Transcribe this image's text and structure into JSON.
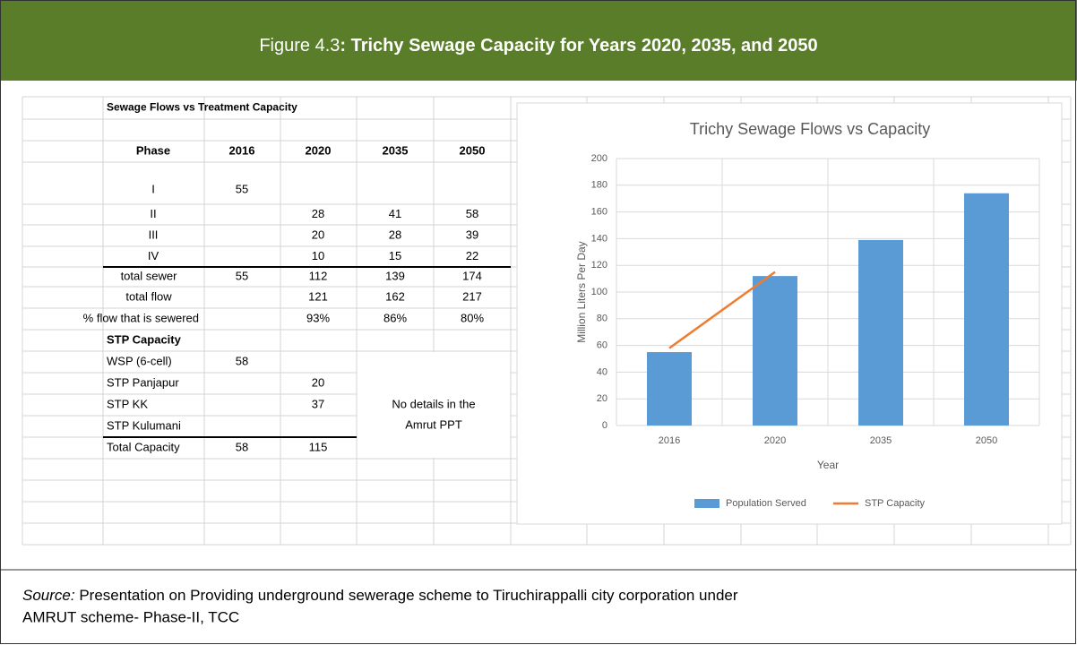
{
  "header": {
    "figure_label": "Figure 4.3",
    "title": ": Trichy Sewage Capacity for Years 2020, 2035, and 2050"
  },
  "table": {
    "title": "Sewage Flows vs Treatment Capacity",
    "columns": [
      "Phase",
      "2016",
      "2020",
      "2035",
      "2050"
    ],
    "rows": [
      {
        "label": "I",
        "values": [
          55,
          null,
          null,
          null
        ]
      },
      {
        "label": "II",
        "values": [
          null,
          28,
          41,
          58
        ]
      },
      {
        "label": "III",
        "values": [
          null,
          20,
          28,
          39
        ]
      },
      {
        "label": "IV",
        "values": [
          null,
          10,
          15,
          22
        ]
      },
      {
        "label": "total sewer",
        "values": [
          55,
          112,
          139,
          174
        ]
      },
      {
        "label": "total flow",
        "values": [
          null,
          121,
          162,
          217
        ]
      },
      {
        "label": "% flow that is sewered",
        "values": [
          null,
          "93%",
          "86%",
          "80%"
        ]
      }
    ],
    "stp_title": "STP Capacity",
    "stp_rows": [
      {
        "label": "WSP (6-cell)",
        "values": [
          58,
          null
        ]
      },
      {
        "label": "STP Panjapur",
        "values": [
          null,
          20
        ]
      },
      {
        "label": "STP KK",
        "values": [
          null,
          37
        ]
      },
      {
        "label": "STP Kulumani",
        "values": [
          null,
          null
        ]
      },
      {
        "label": "Total Capacity",
        "values": [
          58,
          115
        ]
      }
    ],
    "note": [
      "No details in the",
      "Amrut PPT"
    ]
  },
  "chart_data": {
    "type": "bar",
    "title": "Trichy Sewage Flows vs Capacity",
    "x_label": "Year",
    "y_label": "Million Liters Per Day",
    "categories": [
      "2016",
      "2020",
      "2035",
      "2050"
    ],
    "series": [
      {
        "name": "Population Served",
        "type": "bar",
        "color": "#5b9bd5",
        "values": [
          55,
          112,
          139,
          174
        ]
      },
      {
        "name": "STP Capacity",
        "type": "line",
        "color": "#ed7d31",
        "values": [
          58,
          115,
          null,
          null
        ]
      }
    ],
    "ylim": [
      0,
      200
    ],
    "yticks": [
      0,
      20,
      40,
      60,
      80,
      100,
      120,
      140,
      160,
      180,
      200
    ],
    "grid": true
  },
  "source": {
    "label": "Source:",
    "text": " Presentation on Providing underground sewerage scheme to Tiruchirappalli city corporation under",
    "text2": "AMRUT scheme- Phase-II, TCC"
  }
}
